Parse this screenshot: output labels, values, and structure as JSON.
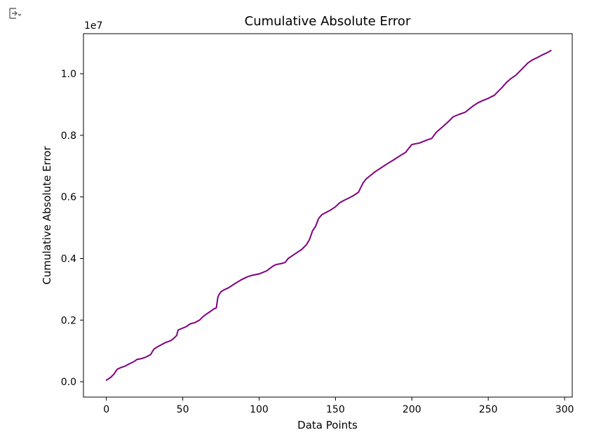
{
  "output_toggle": {
    "icon": "output-toggle-icon"
  },
  "chart_data": {
    "type": "line",
    "title": "Cumulative Absolute Error",
    "xlabel": "Data Points",
    "ylabel": "Cumulative Absolute Error",
    "y_scale_label": "1e7",
    "xlim": [
      -15,
      305
    ],
    "ylim": [
      -0.05,
      1.13
    ],
    "x_ticks": [
      0,
      50,
      100,
      150,
      200,
      250,
      300
    ],
    "y_ticks": [
      0.0,
      0.2,
      0.4,
      0.6,
      0.8,
      1.0
    ],
    "y_tick_labels": [
      "0.0",
      "0.2",
      "0.4",
      "0.6",
      "0.8",
      "1.0"
    ],
    "grid": false,
    "line_color": "#800080",
    "series": [
      {
        "x": [
          0,
          3,
          5,
          7,
          9,
          12,
          15,
          18,
          20,
          23,
          26,
          29,
          31,
          33,
          36,
          39,
          42,
          44,
          46,
          47,
          49,
          52,
          55,
          58,
          61,
          63,
          65,
          68,
          70,
          72,
          73,
          74,
          75,
          77,
          80,
          84,
          88,
          92,
          95,
          100,
          105,
          109,
          111,
          114,
          117,
          119,
          122,
          125,
          128,
          131,
          133,
          135,
          137,
          139,
          141,
          144,
          147,
          150,
          153,
          156,
          159,
          162,
          165,
          168,
          170,
          173,
          176,
          180,
          184,
          188,
          192,
          196,
          198,
          200,
          205,
          210,
          213,
          216,
          220,
          224,
          227,
          231,
          235,
          240,
          243,
          246,
          250,
          254,
          257,
          259,
          262,
          265,
          268,
          270,
          273,
          276,
          279,
          282,
          285,
          288,
          291
        ],
        "y": [
          0.005,
          0.015,
          0.025,
          0.04,
          0.045,
          0.05,
          0.058,
          0.065,
          0.072,
          0.075,
          0.08,
          0.088,
          0.105,
          0.112,
          0.12,
          0.128,
          0.133,
          0.14,
          0.15,
          0.168,
          0.172,
          0.178,
          0.188,
          0.192,
          0.2,
          0.21,
          0.218,
          0.228,
          0.235,
          0.24,
          0.275,
          0.285,
          0.292,
          0.298,
          0.305,
          0.318,
          0.33,
          0.34,
          0.345,
          0.35,
          0.36,
          0.375,
          0.38,
          0.383,
          0.387,
          0.4,
          0.41,
          0.42,
          0.43,
          0.445,
          0.462,
          0.49,
          0.505,
          0.53,
          0.542,
          0.55,
          0.558,
          0.568,
          0.582,
          0.59,
          0.597,
          0.605,
          0.615,
          0.645,
          0.658,
          0.67,
          0.682,
          0.695,
          0.708,
          0.72,
          0.733,
          0.745,
          0.758,
          0.77,
          0.775,
          0.785,
          0.79,
          0.81,
          0.827,
          0.845,
          0.86,
          0.868,
          0.875,
          0.895,
          0.905,
          0.912,
          0.92,
          0.93,
          0.945,
          0.955,
          0.972,
          0.985,
          0.995,
          1.005,
          1.02,
          1.035,
          1.045,
          1.052,
          1.06,
          1.067,
          1.075
        ]
      }
    ]
  }
}
